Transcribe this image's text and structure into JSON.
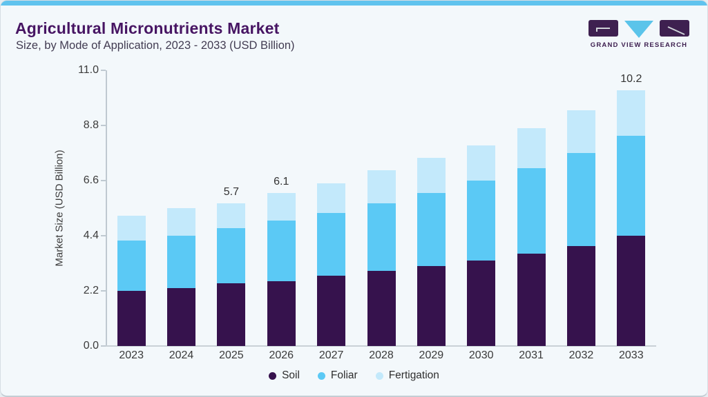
{
  "header": {
    "title": "Agricultural Micronutrients Market",
    "subtitle": "Size, by Mode of Application, 2023 - 2033 (USD Billion)"
  },
  "logo": {
    "brand": "GRAND VIEW RESEARCH"
  },
  "chart_data": {
    "type": "bar",
    "stacked": true,
    "title": "Agricultural Micronutrients Market Size, by Mode of Application, 2023 - 2033 (USD Billion)",
    "xlabel": "",
    "ylabel": "Market Size (USD Billion)",
    "ylim": [
      0,
      11
    ],
    "yticks": [
      0,
      2.2,
      4.4,
      6.6,
      8.8,
      11
    ],
    "ytick_labels": [
      "0.0",
      "2.2",
      "4.4",
      "6.6",
      "8.8",
      "11.0"
    ],
    "grid": false,
    "legend_position": "bottom",
    "categories": [
      "2023",
      "2024",
      "2025",
      "2026",
      "2027",
      "2028",
      "2029",
      "2030",
      "2031",
      "2032",
      "2033"
    ],
    "series": [
      {
        "name": "Soil",
        "color": "#36124d",
        "values": [
          2.2,
          2.3,
          2.5,
          2.6,
          2.8,
          3.0,
          3.2,
          3.4,
          3.7,
          4.0,
          4.4
        ]
      },
      {
        "name": "Foliar",
        "color": "#5bc9f5",
        "values": [
          2.0,
          2.1,
          2.2,
          2.4,
          2.5,
          2.7,
          2.9,
          3.2,
          3.4,
          3.7,
          4.0
        ]
      },
      {
        "name": "Fertigation",
        "color": "#c3e9fb",
        "values": [
          1.0,
          1.1,
          1.0,
          1.1,
          1.2,
          1.3,
          1.4,
          1.4,
          1.6,
          1.7,
          1.8
        ]
      }
    ],
    "totals": [
      5.2,
      5.5,
      5.7,
      6.1,
      6.5,
      7.0,
      7.5,
      8.0,
      8.7,
      9.4,
      10.2
    ],
    "bar_labels": {
      "2025": "5.7",
      "2026": "6.1",
      "2033": "10.2"
    }
  },
  "colors": {
    "accent_top_bar": "#60c3ee",
    "background": "#f3f8fb",
    "title": "#471563",
    "subtitle": "#423c52",
    "axis": "#bfc9d1",
    "axis_text": "#3b3b3b",
    "logo_purple": "#3e2050",
    "logo_blue": "#5bc4ea"
  }
}
